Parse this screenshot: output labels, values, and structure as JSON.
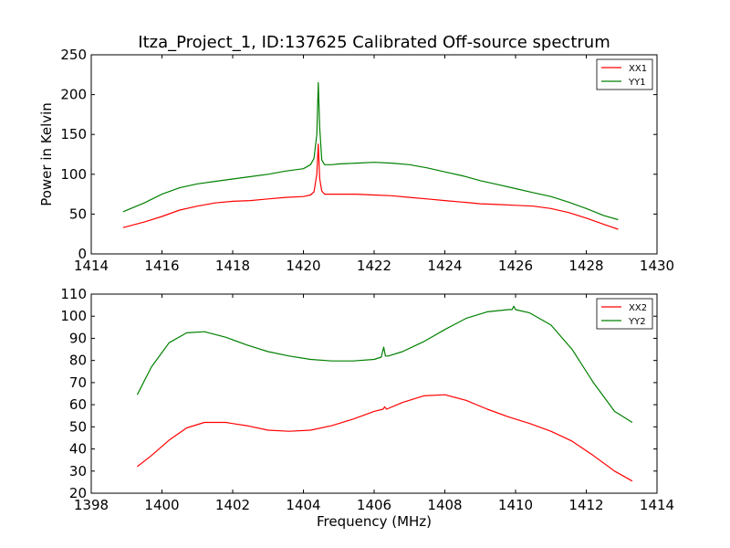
{
  "chart_data": [
    {
      "type": "line",
      "title": "Itza_Project_1, ID:137625 Calibrated Off-source spectrum",
      "xlabel": "",
      "ylabel": "Power in Kelvin",
      "xlim": [
        1414,
        1430
      ],
      "ylim": [
        0,
        250
      ],
      "xticks": [
        1414,
        1416,
        1418,
        1420,
        1422,
        1424,
        1426,
        1428,
        1430
      ],
      "yticks": [
        0,
        50,
        100,
        150,
        200,
        250
      ],
      "grid": false,
      "legend_position": "top-right",
      "series": [
        {
          "name": "XX1",
          "color": "#ff0000",
          "x": [
            1414.9,
            1415.5,
            1416.0,
            1416.5,
            1417.0,
            1417.5,
            1418.0,
            1418.5,
            1419.0,
            1419.5,
            1420.0,
            1420.2,
            1420.3,
            1420.38,
            1420.42,
            1420.46,
            1420.52,
            1420.6,
            1420.8,
            1421.0,
            1421.5,
            1422.0,
            1422.5,
            1423.0,
            1423.5,
            1424.0,
            1424.5,
            1425.0,
            1425.5,
            1426.0,
            1426.5,
            1427.0,
            1427.5,
            1428.0,
            1428.5,
            1428.9
          ],
          "y": [
            33,
            40,
            47,
            55,
            60,
            64,
            66,
            67,
            69,
            71,
            72,
            74,
            78,
            100,
            138,
            95,
            79,
            75,
            75,
            75,
            75,
            74,
            73,
            71,
            69,
            67,
            65,
            63,
            62,
            61,
            60,
            57,
            52,
            45,
            37,
            31
          ]
        },
        {
          "name": "YY1",
          "color": "#008000",
          "x": [
            1414.9,
            1415.5,
            1416.0,
            1416.5,
            1417.0,
            1417.5,
            1418.0,
            1418.5,
            1419.0,
            1419.5,
            1420.0,
            1420.2,
            1420.3,
            1420.38,
            1420.42,
            1420.46,
            1420.52,
            1420.6,
            1420.8,
            1421.0,
            1421.5,
            1422.0,
            1422.5,
            1423.0,
            1423.5,
            1424.0,
            1424.5,
            1425.0,
            1425.5,
            1426.0,
            1426.5,
            1427.0,
            1427.5,
            1428.0,
            1428.5,
            1428.9
          ],
          "y": [
            53,
            64,
            75,
            83,
            88,
            91,
            94,
            97,
            100,
            104,
            107,
            112,
            120,
            150,
            215,
            160,
            118,
            112,
            112,
            113,
            114,
            115,
            114,
            112,
            108,
            103,
            98,
            92,
            87,
            82,
            77,
            72,
            65,
            57,
            48,
            43
          ]
        }
      ]
    },
    {
      "type": "line",
      "title": "",
      "xlabel": "Frequency (MHz)",
      "ylabel": "",
      "xlim": [
        1398,
        1414
      ],
      "ylim": [
        20,
        110
      ],
      "xticks": [
        1398,
        1400,
        1402,
        1404,
        1406,
        1408,
        1410,
        1412,
        1414
      ],
      "yticks": [
        20,
        30,
        40,
        50,
        60,
        70,
        80,
        90,
        100,
        110
      ],
      "grid": false,
      "legend_position": "top-right",
      "series": [
        {
          "name": "XX2",
          "color": "#ff0000",
          "x": [
            1399.3,
            1399.7,
            1400.2,
            1400.7,
            1401.2,
            1401.8,
            1402.4,
            1403.0,
            1403.6,
            1404.2,
            1404.8,
            1405.4,
            1406.0,
            1406.25,
            1406.3,
            1406.35,
            1406.8,
            1407.4,
            1408.0,
            1408.6,
            1409.2,
            1409.8,
            1410.4,
            1411.0,
            1411.6,
            1412.2,
            1412.8,
            1413.3
          ],
          "y": [
            32,
            37,
            44,
            49.5,
            52,
            52,
            50.5,
            48.5,
            48,
            48.5,
            50.5,
            53.5,
            57,
            58,
            59,
            58,
            61,
            64,
            64.5,
            62,
            58,
            54.5,
            51.5,
            48,
            43.5,
            37,
            30,
            25.5
          ]
        },
        {
          "name": "YY2",
          "color": "#008000",
          "x": [
            1399.3,
            1399.7,
            1400.2,
            1400.7,
            1401.2,
            1401.8,
            1402.4,
            1403.0,
            1403.6,
            1404.2,
            1404.8,
            1405.4,
            1406.0,
            1406.2,
            1406.27,
            1406.32,
            1406.4,
            1406.8,
            1407.4,
            1408.0,
            1408.6,
            1409.2,
            1409.8,
            1409.9,
            1409.95,
            1410.0,
            1410.4,
            1411.0,
            1411.6,
            1412.2,
            1412.8,
            1413.3
          ],
          "y": [
            64.5,
            77,
            88,
            92.5,
            93,
            90.5,
            87,
            84,
            82,
            80.5,
            79.8,
            79.8,
            80.5,
            81.5,
            86,
            82,
            82,
            84,
            88.5,
            94,
            99,
            102,
            103,
            103,
            104.5,
            103,
            101.5,
            96,
            85,
            70,
            57,
            52
          ]
        }
      ]
    }
  ]
}
